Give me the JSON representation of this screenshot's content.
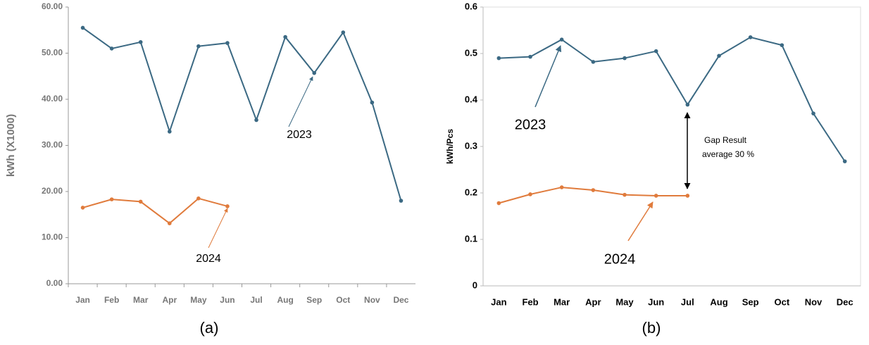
{
  "chart_data": [
    {
      "type": "line",
      "caption": "(a)",
      "y_label": "kWh (X1000)",
      "categories": [
        "Jan",
        "Feb",
        "Mar",
        "Apr",
        "May",
        "Jun",
        "Jul",
        "Aug",
        "Sep",
        "Oct",
        "Nov",
        "Dec"
      ],
      "series": [
        {
          "name": "2023",
          "color": "#3b6983",
          "values": [
            55.5,
            51,
            52.4,
            33,
            51.5,
            52.2,
            35.5,
            53.5,
            45.7,
            54.5,
            39.3,
            18
          ]
        },
        {
          "name": "2024",
          "color": "#e07b3c",
          "values": [
            16.5,
            18.3,
            17.8,
            13.1,
            18.5,
            16.8,
            null,
            null,
            null,
            null,
            null,
            null
          ]
        }
      ],
      "ylim": [
        0,
        60
      ],
      "yticks": [
        {
          "value": 0,
          "label": "0.00"
        },
        {
          "value": 10,
          "label": "10.00"
        },
        {
          "value": 20,
          "label": "20.00"
        },
        {
          "value": 30,
          "label": "30.00"
        },
        {
          "value": 40,
          "label": "40.00"
        },
        {
          "value": 50,
          "label": "50.00"
        },
        {
          "value": 60,
          "label": "60.00"
        }
      ]
    },
    {
      "type": "line",
      "caption": "(b)",
      "y_label": "kWh/Pcs",
      "categories": [
        "Jan",
        "Feb",
        "Mar",
        "Apr",
        "May",
        "Jun",
        "Jul",
        "Aug",
        "Sep",
        "Oct",
        "Nov",
        "Dec"
      ],
      "series": [
        {
          "name": "2023",
          "color": "#3b6983",
          "values": [
            0.49,
            0.493,
            0.53,
            0.482,
            0.49,
            0.505,
            0.39,
            0.495,
            0.535,
            0.518,
            0.371,
            0.268
          ]
        },
        {
          "name": "2024",
          "color": "#e07b3c",
          "values": [
            0.178,
            0.197,
            0.212,
            0.206,
            0.196,
            0.194,
            0.194,
            null,
            null,
            null,
            null,
            null
          ]
        }
      ],
      "ylim": [
        0,
        0.6
      ],
      "yticks": [
        0,
        0.1,
        0.2,
        0.3,
        0.4,
        0.5,
        0.6
      ],
      "annotations": [
        "Gap Result",
        "average 30 %"
      ]
    }
  ]
}
